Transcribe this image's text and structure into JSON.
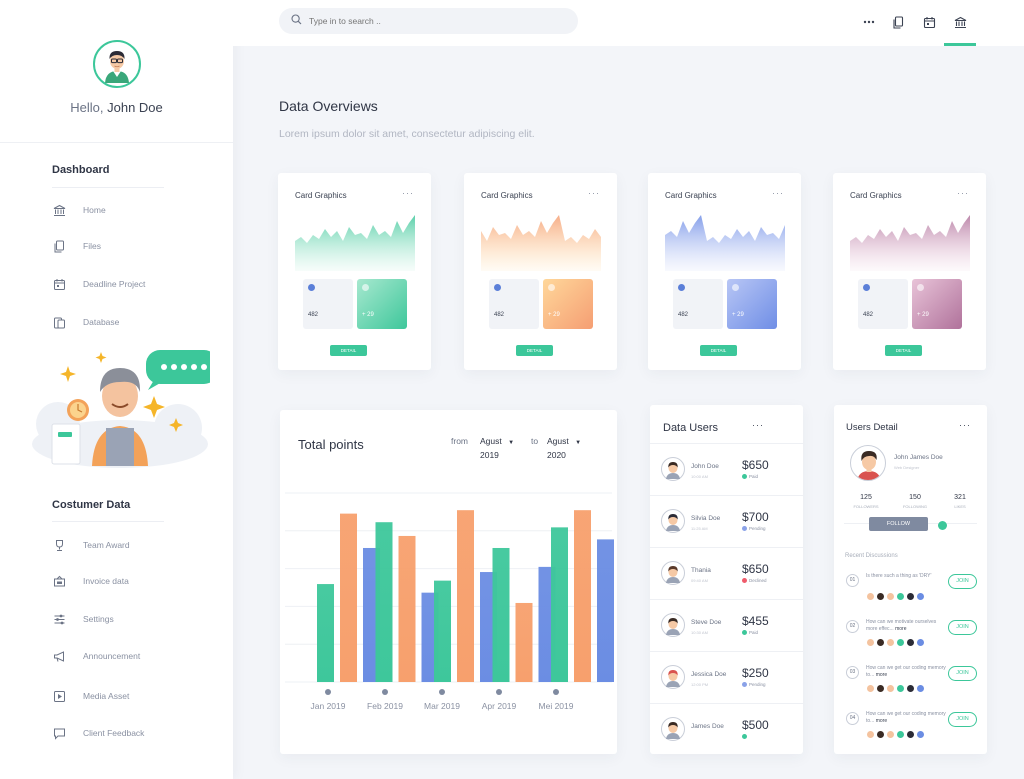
{
  "sidebar": {
    "greeting": "Hello,",
    "user_name": "John Doe",
    "section_dashboard": "Dashboard",
    "dashboard_items": [
      {
        "label": "Home",
        "icon": "bank-icon"
      },
      {
        "label": "Files",
        "icon": "files-icon"
      },
      {
        "label": "Deadline Project",
        "icon": "calendar-icon"
      },
      {
        "label": "Database",
        "icon": "database-icon"
      }
    ],
    "section_customer": "Costumer Data",
    "customer_items": [
      {
        "label": "Team Award",
        "icon": "trophy-icon"
      },
      {
        "label": "Invoice data",
        "icon": "invoice-icon"
      },
      {
        "label": "Settings",
        "icon": "sliders-icon"
      },
      {
        "label": "Announcement",
        "icon": "megaphone-icon"
      },
      {
        "label": "Media Asset",
        "icon": "media-icon"
      },
      {
        "label": "Client Feedback",
        "icon": "chat-icon"
      }
    ]
  },
  "search": {
    "placeholder": "Type in to search .."
  },
  "topbar_icons": [
    "more-icon",
    "files-icon",
    "calendar-icon",
    "bank-icon"
  ],
  "page": {
    "title": "Data Overviews",
    "subtitle": "Lorem ipsum dolor sit amet, consectetur adipiscing elit."
  },
  "cards": [
    {
      "title": "Card Graphics",
      "stat1": "482",
      "stat2": "+ 29",
      "button": "DETAIL",
      "colors": [
        "#3ec79b",
        "#a7e8cf"
      ]
    },
    {
      "title": "Card Graphics",
      "stat1": "482",
      "stat2": "+ 29",
      "button": "DETAIL",
      "colors": [
        "#f59e73",
        "#ffd79a"
      ]
    },
    {
      "title": "Card Graphics",
      "stat1": "482",
      "stat2": "+ 29",
      "button": "DETAIL",
      "colors": [
        "#6f8ee6",
        "#b8c6f5"
      ]
    },
    {
      "title": "Card Graphics",
      "stat1": "482",
      "stat2": "+ 29",
      "button": "DETAIL",
      "colors": [
        "#b0729b",
        "#e8c3d8"
      ]
    }
  ],
  "total_points": {
    "title": "Total points",
    "from_label": "from",
    "from_month": "Agust",
    "from_year": "2019",
    "to_label": "to",
    "to_month": "Agust",
    "to_year": "2020"
  },
  "chart_data": {
    "type": "bar",
    "categories": [
      "Jan 2019",
      "Feb 2019",
      "Mar 2019",
      "Apr 2019",
      "Mei 2019"
    ],
    "series": [
      {
        "values": [
          57,
          93,
          59,
          78,
          90
        ],
        "color": "#3ec79b"
      },
      {
        "values": [
          98,
          85,
          100,
          46,
          100
        ],
        "color": "#f7a06d"
      },
      {
        "values": [
          78,
          52,
          64,
          67,
          83
        ],
        "color": "#6b8de3"
      }
    ],
    "ylim": [
      0,
      110
    ],
    "grid": true
  },
  "data_users": {
    "title": "Data Users",
    "rows": [
      {
        "name": "John Doe",
        "time": "10:00 AM",
        "amount": "$650",
        "status": "Paid",
        "status_color": "#3cc79a"
      },
      {
        "name": "Silvia Doe",
        "time": "11:25 AM",
        "amount": "$700",
        "status": "Pending",
        "status_color": "#8aa2e8"
      },
      {
        "name": "Thania",
        "time": "09:40 AM",
        "amount": "$650",
        "status": "Declined",
        "status_color": "#ef5b6b"
      },
      {
        "name": "Steve Doe",
        "time": "10:30 AM",
        "amount": "$455",
        "status": "Paid",
        "status_color": "#3cc79a"
      },
      {
        "name": "Jessica Doe",
        "time": "12:00 PM",
        "amount": "$250",
        "status": "Pending",
        "status_color": "#8aa2e8"
      },
      {
        "name": "James Doe",
        "time": "",
        "amount": "$500",
        "status": "",
        "status_color": "#3cc79a"
      }
    ]
  },
  "users_detail": {
    "title": "Users Detail",
    "name": "John James Doe",
    "role": "Web Designer",
    "stats": [
      {
        "value": "125",
        "label": "FOLLOWERS"
      },
      {
        "value": "150",
        "label": "FOLLOWING"
      },
      {
        "value": "321",
        "label": "LIKES"
      }
    ],
    "follow": "FOLLOW",
    "recent_title": "Recent Discussions",
    "discussions": [
      {
        "num": "01",
        "text": "Is there such a thing as 'DRY'",
        "more": "",
        "join": "JOIN"
      },
      {
        "num": "02",
        "text": "How can we motivate ourselves more effec...",
        "more": "more",
        "join": "JOIN"
      },
      {
        "num": "03",
        "text": "How can we get our coding memory to...",
        "more": "more",
        "join": "JOIN"
      },
      {
        "num": "04",
        "text": "How can we get our coding memory to...",
        "more": "more",
        "join": "JOIN"
      }
    ]
  },
  "accent_color": "#3cc79a"
}
